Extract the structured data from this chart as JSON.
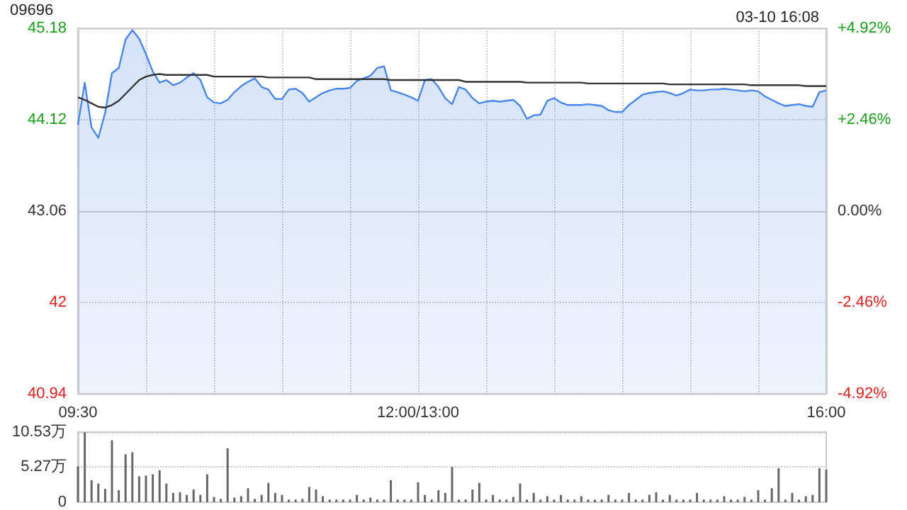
{
  "chart_data": [
    {
      "type": "line",
      "title": "09696",
      "annotations": [
        "03-10 16:08"
      ],
      "marker": "none",
      "grid": true,
      "categories": [
        "09:30",
        null,
        null,
        null,
        null,
        null,
        null,
        null,
        null,
        null,
        null,
        null,
        null,
        null,
        null,
        null,
        null,
        null,
        null,
        null,
        null,
        null,
        null,
        null,
        null,
        null,
        null,
        null,
        null,
        null,
        null,
        null,
        null,
        null,
        null,
        null,
        null,
        null,
        null,
        null,
        null,
        null,
        null,
        null,
        null,
        null,
        null,
        null,
        null,
        null,
        "12:00/13:00",
        null,
        null,
        null,
        null,
        null,
        null,
        null,
        null,
        null,
        null,
        null,
        null,
        null,
        null,
        null,
        null,
        null,
        null,
        null,
        null,
        null,
        null,
        null,
        null,
        null,
        null,
        null,
        null,
        null,
        null,
        null,
        null,
        null,
        null,
        null,
        null,
        null,
        null,
        null,
        null,
        null,
        null,
        null,
        null,
        null,
        null,
        null,
        null,
        null,
        null,
        null,
        null,
        null,
        null,
        null,
        null,
        null,
        null,
        null,
        "16:00"
      ],
      "ylim": [
        40.94,
        45.18
      ],
      "yticks": [
        40.94,
        42.0,
        43.06,
        44.12,
        45.18
      ],
      "y2lim": [
        -4.92,
        4.92
      ],
      "y2ticks": [
        {
          "value": -4.92,
          "label": "-4.92%"
        },
        {
          "value": -2.46,
          "label": "-2.46%"
        },
        {
          "value": 0,
          "label": "0.00%"
        },
        {
          "value": 2.46,
          "label": "+2.46%"
        },
        {
          "value": 4.92,
          "label": "+4.92%"
        }
      ],
      "series": [
        {
          "type": "area",
          "color": "#4a86e8",
          "values": [
            44.06,
            44.55,
            44.03,
            43.91,
            44.2,
            44.66,
            44.72,
            45.05,
            45.16,
            45.06,
            44.88,
            44.68,
            44.55,
            44.58,
            44.52,
            44.55,
            44.61,
            44.66,
            44.58,
            44.38,
            44.32,
            44.31,
            44.35,
            44.44,
            44.51,
            44.56,
            44.6,
            44.5,
            44.47,
            44.36,
            44.36,
            44.47,
            44.48,
            44.43,
            44.33,
            44.38,
            44.43,
            44.46,
            44.48,
            44.48,
            44.49,
            44.57,
            44.6,
            44.63,
            44.72,
            44.74,
            44.46,
            44.44,
            44.41,
            44.38,
            44.34,
            44.58,
            44.59,
            44.5,
            44.37,
            44.3,
            44.5,
            44.47,
            44.37,
            44.31,
            44.33,
            44.34,
            44.33,
            44.34,
            44.35,
            44.28,
            44.13,
            44.17,
            44.18,
            44.34,
            44.37,
            44.32,
            44.29,
            44.29,
            44.29,
            44.3,
            44.29,
            44.28,
            44.23,
            44.21,
            44.21,
            44.29,
            44.35,
            44.41,
            44.43,
            44.44,
            44.45,
            44.43,
            44.4,
            44.43,
            44.47,
            44.46,
            44.46,
            44.47,
            44.47,
            44.48,
            44.47,
            44.46,
            44.45,
            44.46,
            44.45,
            44.39,
            44.35,
            44.31,
            44.28,
            44.29,
            44.3,
            44.28,
            44.27,
            44.44,
            44.46
          ]
        },
        {
          "type": "line",
          "color": "#333333",
          "values": [
            44.38,
            44.35,
            44.31,
            44.27,
            44.26,
            44.29,
            44.34,
            44.42,
            44.5,
            44.58,
            44.62,
            44.64,
            44.65,
            44.64,
            44.64,
            44.64,
            44.64,
            44.64,
            44.64,
            44.64,
            44.62,
            44.62,
            44.62,
            44.62,
            44.62,
            44.62,
            44.62,
            44.62,
            44.61,
            44.61,
            44.61,
            44.61,
            44.61,
            44.61,
            44.61,
            44.59,
            44.59,
            44.59,
            44.59,
            44.59,
            44.59,
            44.59,
            44.59,
            44.59,
            44.59,
            44.59,
            44.58,
            44.58,
            44.58,
            44.58,
            44.58,
            44.58,
            44.58,
            44.58,
            44.58,
            44.58,
            44.58,
            44.56,
            44.56,
            44.56,
            44.56,
            44.56,
            44.56,
            44.56,
            44.56,
            44.56,
            44.55,
            44.55,
            44.55,
            44.55,
            44.55,
            44.55,
            44.55,
            44.55,
            44.55,
            44.54,
            44.54,
            44.54,
            44.54,
            44.54,
            44.54,
            44.54,
            44.54,
            44.54,
            44.54,
            44.54,
            44.54,
            44.53,
            44.53,
            44.53,
            44.53,
            44.53,
            44.53,
            44.53,
            44.53,
            44.53,
            44.53,
            44.53,
            44.53,
            44.52,
            44.52,
            44.52,
            44.52,
            44.52,
            44.52,
            44.52,
            44.52,
            44.51,
            44.51,
            44.51,
            44.51
          ]
        }
      ]
    },
    {
      "type": "bar",
      "color": "#666666",
      "grid": "y",
      "tick_labels": "y",
      "categories": [
        null,
        null,
        null,
        null,
        null,
        null,
        null,
        null,
        null,
        null,
        null,
        null,
        null,
        null,
        null,
        null,
        null,
        null,
        null,
        null,
        null,
        null,
        null,
        null,
        null,
        null,
        null,
        null,
        null,
        null,
        null,
        null,
        null,
        null,
        null,
        null,
        null,
        null,
        null,
        null,
        null,
        null,
        null,
        null,
        null,
        null,
        null,
        null,
        null,
        null,
        null,
        null,
        null,
        null,
        null,
        null,
        null,
        null,
        null,
        null,
        null,
        null,
        null,
        null,
        null,
        null,
        null,
        null,
        null,
        null,
        null,
        null,
        null,
        null,
        null,
        null,
        null,
        null,
        null,
        null,
        null,
        null,
        null,
        null,
        null,
        null,
        null,
        null,
        null,
        null,
        null,
        null,
        null,
        null,
        null,
        null,
        null,
        null,
        null,
        null,
        null,
        null,
        null,
        null,
        null,
        null,
        null,
        null,
        null,
        null,
        null
      ],
      "ylim": [
        0,
        10.53
      ],
      "yticks": [
        {
          "value": 0,
          "label": "0"
        },
        {
          "value": 5.27,
          "label": "5.27万"
        },
        {
          "value": 10.53,
          "label": "10.53万"
        }
      ],
      "values": [
        5.4,
        10.5,
        3.3,
        2.8,
        2.0,
        9.3,
        1.8,
        7.2,
        7.5,
        3.9,
        4.0,
        4.2,
        4.8,
        2.8,
        1.4,
        1.5,
        1.1,
        1.9,
        1.1,
        4.2,
        0.8,
        0.5,
        8.1,
        0.7,
        0.9,
        2.1,
        0.5,
        1.1,
        2.9,
        1.4,
        1.1,
        0.4,
        0.4,
        0.5,
        2.3,
        1.9,
        0.9,
        0.4,
        0.4,
        0.4,
        0.4,
        1.1,
        0.4,
        0.7,
        0.4,
        0.4,
        3.3,
        0.4,
        0.4,
        0.4,
        3.0,
        1.1,
        0.4,
        1.8,
        1.4,
        5.3,
        0.4,
        0.4,
        1.9,
        2.9,
        0.4,
        1.1,
        0.4,
        0.4,
        0.8,
        2.8,
        0.4,
        1.4,
        0.4,
        0.9,
        0.4,
        1.1,
        0.4,
        0.4,
        0.9,
        0.4,
        0.4,
        0.4,
        1.1,
        0.4,
        0.4,
        1.4,
        0.4,
        0.4,
        1.1,
        1.5,
        0.4,
        1.1,
        0.4,
        0.4,
        0.4,
        1.4,
        0.4,
        0.4,
        0.4,
        0.9,
        0.4,
        0.4,
        0.8,
        0.4,
        1.8,
        0.4,
        2.1,
        5.1,
        0.4,
        1.4,
        0.4,
        0.9,
        1.1,
        5.1,
        4.9
      ]
    }
  ]
}
